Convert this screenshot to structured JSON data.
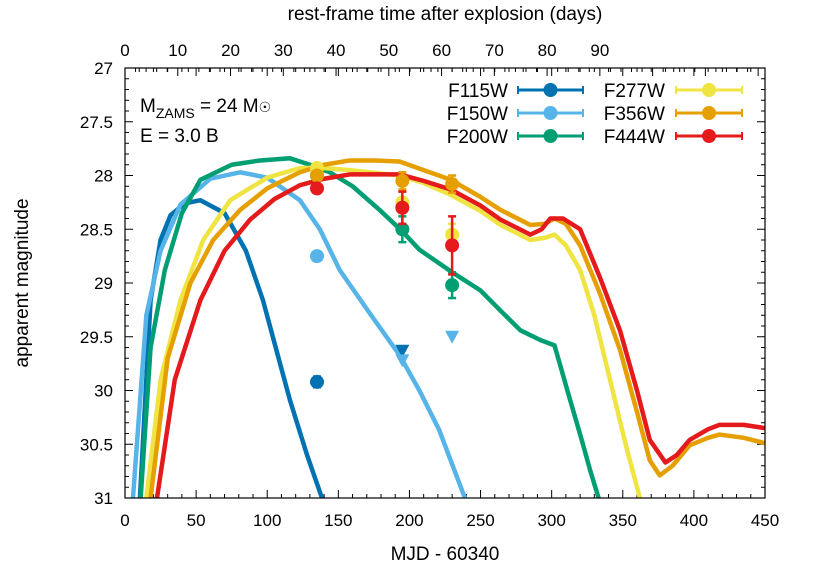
{
  "chart_data": {
    "type": "line",
    "xlabel": "MJD - 60340",
    "ylabel": "apparent magnitude",
    "top_xlabel": "rest-frame time after explosion (days)",
    "xlim": [
      0,
      450
    ],
    "ylim": [
      31,
      27
    ],
    "y_inverted": true,
    "top_xlim_days": [
      0,
      121.3
    ],
    "x_ticks": [
      "0",
      "50",
      "100",
      "150",
      "200",
      "250",
      "300",
      "350",
      "400",
      "450"
    ],
    "y_ticks": [
      "27",
      "27.5",
      "28",
      "28.5",
      "29",
      "29.5",
      "30",
      "30.5",
      "31"
    ],
    "top_ticks": [
      "0",
      "10",
      "20",
      "30",
      "40",
      "50",
      "60",
      "70",
      "80",
      "90"
    ],
    "grid": false,
    "legend_placement": "top-right",
    "annotations": [
      "M_ZAMS = 24 M☉",
      "E = 3.0 B"
    ],
    "annotation_parts": {
      "m": "M",
      "zams": "ZAMS",
      "eq": " = 24 M",
      "sun": "☉",
      "energy": "E = 3.0 B"
    },
    "series": [
      {
        "name": "F115W",
        "color": "#0072b2",
        "curve": [
          [
            10.5,
            31
          ],
          [
            18,
            29.16
          ],
          [
            25,
            28.6
          ],
          [
            32,
            28.37
          ],
          [
            42,
            28.26
          ],
          [
            53,
            28.23
          ],
          [
            70,
            28.35
          ],
          [
            85,
            28.7
          ],
          [
            97,
            29.16
          ],
          [
            108,
            29.7
          ],
          [
            116,
            30.09
          ],
          [
            128,
            30.6
          ],
          [
            138.5,
            31
          ]
        ],
        "points": [
          {
            "x": 135,
            "y": 29.92,
            "err": 0.05
          }
        ],
        "limits": [
          {
            "x": 195,
            "y": 29.63
          }
        ]
      },
      {
        "name": "F150W",
        "color": "#56b4e9",
        "curve": [
          [
            5.6,
            31
          ],
          [
            15,
            29.3
          ],
          [
            25,
            28.7
          ],
          [
            39,
            28.27
          ],
          [
            60,
            28.03
          ],
          [
            81,
            27.97
          ],
          [
            100,
            28.02
          ],
          [
            123,
            28.23
          ],
          [
            137,
            28.5
          ],
          [
            151,
            28.88
          ],
          [
            172,
            29.28
          ],
          [
            193,
            29.67
          ],
          [
            207,
            30.0
          ],
          [
            221,
            30.37
          ],
          [
            239,
            31
          ]
        ],
        "points": [
          {
            "x": 135,
            "y": 28.75,
            "err": 0.03
          }
        ],
        "limits": [
          {
            "x": 195,
            "y": 29.72
          },
          {
            "x": 230,
            "y": 29.5
          }
        ]
      },
      {
        "name": "F200W",
        "color": "#009e73",
        "curve": [
          [
            11,
            31
          ],
          [
            18,
            29.6
          ],
          [
            28,
            28.88
          ],
          [
            40,
            28.35
          ],
          [
            53,
            28.04
          ],
          [
            75,
            27.9
          ],
          [
            95,
            27.86
          ],
          [
            116,
            27.84
          ],
          [
            130,
            27.9
          ],
          [
            144,
            27.97
          ],
          [
            160,
            28.1
          ],
          [
            179,
            28.32
          ],
          [
            195,
            28.52
          ],
          [
            207,
            28.69
          ],
          [
            230,
            28.9
          ],
          [
            250,
            29.07
          ],
          [
            265,
            29.27
          ],
          [
            278,
            29.44
          ],
          [
            292,
            29.53
          ],
          [
            302,
            29.58
          ],
          [
            313,
            30.09
          ],
          [
            322,
            30.5
          ],
          [
            327,
            30.74
          ],
          [
            333,
            31
          ]
        ],
        "points": [
          {
            "x": 135,
            "y": 28.0,
            "err": 0.03
          },
          {
            "x": 195,
            "y": 28.5,
            "err": 0.12
          },
          {
            "x": 230,
            "y": 29.02,
            "err": 0.12
          }
        ],
        "limits": []
      },
      {
        "name": "F277W",
        "color": "#f0e442",
        "curve": [
          [
            15,
            31
          ],
          [
            25,
            29.9
          ],
          [
            39,
            29.16
          ],
          [
            55,
            28.6
          ],
          [
            74,
            28.23
          ],
          [
            100,
            28.02
          ],
          [
            123,
            27.93
          ],
          [
            140,
            27.93
          ],
          [
            158,
            27.95
          ],
          [
            193,
            28.0
          ],
          [
            210,
            28.07
          ],
          [
            229,
            28.18
          ],
          [
            250,
            28.33
          ],
          [
            264,
            28.46
          ],
          [
            285,
            28.6
          ],
          [
            295,
            28.58
          ],
          [
            302,
            28.55
          ],
          [
            310,
            28.65
          ],
          [
            320,
            28.88
          ],
          [
            330,
            29.3
          ],
          [
            341,
            29.9
          ],
          [
            352,
            30.5
          ],
          [
            362,
            31
          ]
        ],
        "points": [
          {
            "x": 135,
            "y": 27.93,
            "err": 0.03
          },
          {
            "x": 195,
            "y": 28.25,
            "err": 0.1
          },
          {
            "x": 230,
            "y": 28.55,
            "err": 0.1
          }
        ],
        "limits": []
      },
      {
        "name": "F356W",
        "color": "#e69f00",
        "curve": [
          [
            18,
            31
          ],
          [
            30,
            29.7
          ],
          [
            46,
            29.0
          ],
          [
            62,
            28.6
          ],
          [
            81,
            28.32
          ],
          [
            100,
            28.12
          ],
          [
            123,
            27.97
          ],
          [
            140,
            27.9
          ],
          [
            158,
            27.86
          ],
          [
            175,
            27.86
          ],
          [
            193,
            27.87
          ],
          [
            210,
            27.95
          ],
          [
            229,
            28.04
          ],
          [
            250,
            28.2
          ],
          [
            264,
            28.32
          ],
          [
            285,
            28.46
          ],
          [
            295,
            28.45
          ],
          [
            302,
            28.4
          ],
          [
            310,
            28.45
          ],
          [
            320,
            28.65
          ],
          [
            334,
            29.1
          ],
          [
            348,
            29.62
          ],
          [
            360,
            30.2
          ],
          [
            369,
            30.65
          ],
          [
            376,
            30.79
          ],
          [
            385,
            30.7
          ],
          [
            397,
            30.51
          ],
          [
            410,
            30.44
          ],
          [
            418,
            30.41
          ],
          [
            435,
            30.44
          ],
          [
            450,
            30.49
          ]
        ],
        "points": [
          {
            "x": 135,
            "y": 28.0,
            "err": 0.03
          },
          {
            "x": 195,
            "y": 28.05,
            "err": 0.08
          },
          {
            "x": 230,
            "y": 28.08,
            "err": 0.08
          }
        ],
        "limits": []
      },
      {
        "name": "F444W",
        "color": "#e41a1c",
        "curve": [
          [
            22.5,
            31
          ],
          [
            35,
            29.9
          ],
          [
            53,
            29.16
          ],
          [
            70,
            28.7
          ],
          [
            88,
            28.41
          ],
          [
            105,
            28.22
          ],
          [
            123,
            28.09
          ],
          [
            140,
            28.03
          ],
          [
            158,
            27.99
          ],
          [
            175,
            27.99
          ],
          [
            193,
            27.99
          ],
          [
            210,
            28.05
          ],
          [
            229,
            28.13
          ],
          [
            250,
            28.28
          ],
          [
            264,
            28.41
          ],
          [
            285,
            28.55
          ],
          [
            293,
            28.5
          ],
          [
            299,
            28.4
          ],
          [
            308,
            28.4
          ],
          [
            320,
            28.5
          ],
          [
            334,
            28.95
          ],
          [
            348,
            29.44
          ],
          [
            360,
            30.0
          ],
          [
            369,
            30.46
          ],
          [
            380,
            30.67
          ],
          [
            388,
            30.6
          ],
          [
            397,
            30.46
          ],
          [
            410,
            30.36
          ],
          [
            418,
            30.32
          ],
          [
            435,
            30.32
          ],
          [
            450,
            30.35
          ]
        ],
        "points": [
          {
            "x": 135,
            "y": 28.12,
            "err": 0.04
          },
          {
            "x": 195,
            "y": 28.3,
            "err": 0.15
          },
          {
            "x": 230,
            "y": 28.65,
            "err": 0.27
          }
        ],
        "limits": []
      }
    ]
  }
}
